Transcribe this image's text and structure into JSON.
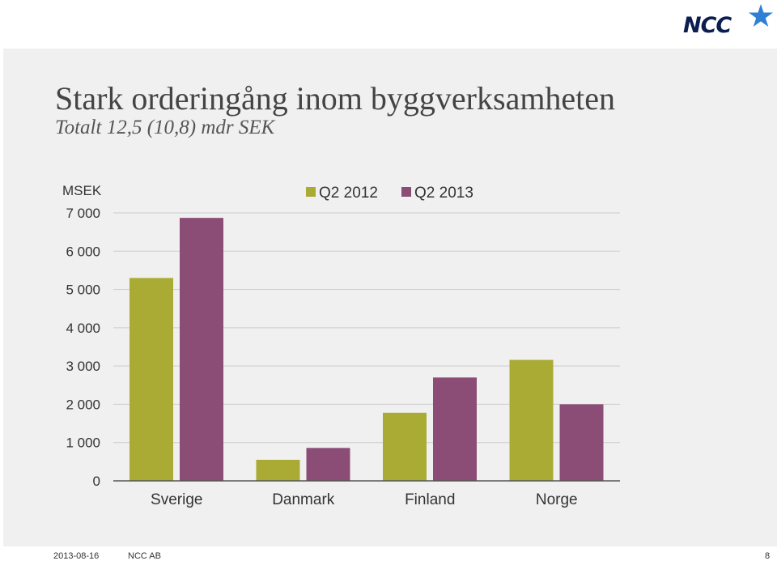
{
  "slide": {
    "title": "Stark orderingång inom byggverksamheten",
    "subtitle": "Totalt 12,5 (10,8) mdr SEK",
    "logo_text": "NCC",
    "footer": {
      "date": "2013-08-16",
      "company": "NCC AB",
      "page": "8"
    }
  },
  "chart_data": {
    "type": "bar",
    "ylabel": "MSEK",
    "ylim": [
      0,
      7000
    ],
    "yticks": [
      0,
      1000,
      2000,
      3000,
      4000,
      5000,
      6000,
      7000
    ],
    "ytick_labels": [
      "0",
      "1 000",
      "2 000",
      "3 000",
      "4 000",
      "5 000",
      "6 000",
      "7 000"
    ],
    "categories": [
      "Sverige",
      "Danmark",
      "Finland",
      "Norge"
    ],
    "series": [
      {
        "name": "Q2 2012",
        "color": "#a9ab34",
        "values": [
          5300,
          550,
          1780,
          3160
        ]
      },
      {
        "name": "Q2 2013",
        "color": "#8b4c75",
        "values": [
          6870,
          860,
          2700,
          2000
        ]
      }
    ],
    "legend": "top",
    "grid": true
  },
  "colors": {
    "logo": "#0b1e4f",
    "star": "#2f7fd3",
    "gridline": "#cccccc",
    "axis": "#555555"
  }
}
